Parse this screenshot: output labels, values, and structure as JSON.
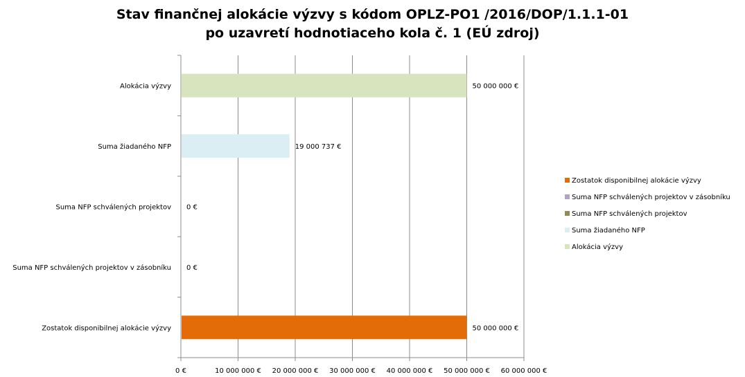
{
  "chart_data": {
    "type": "bar",
    "orientation": "horizontal",
    "title_line1": "Stav finančnej alokácie výzvy s kódom OPLZ-PO1  /2016/DOP/1.1.1-01",
    "title_line2": "po uzavretí hodnotiaceho kola č. 1 (EÚ zdroj)",
    "categories": [
      "Alokácia výzvy",
      "Suma žiadaného NFP",
      "Suma NFP schválených projektov",
      "Suma NFP schválených projektov v zásobníku",
      "Zostatok disponibilnej alokácie výzvy"
    ],
    "values": [
      50000000,
      19000737,
      0,
      0,
      50000000
    ],
    "value_labels": [
      "50 000 000 €",
      "19 000 737 €",
      "0 €",
      "0 €",
      "50 000 000 €"
    ],
    "colors": [
      "#d7e4bd",
      "#dbeef4",
      "#948a54",
      "#b3a2c7",
      "#e36c09"
    ],
    "xlim": [
      0,
      60000000
    ],
    "xticks": [
      0,
      10000000,
      20000000,
      30000000,
      40000000,
      50000000,
      60000000
    ],
    "xtick_labels": [
      "0 €",
      "10 000 000 €",
      "20 000 000 €",
      "30 000 000 €",
      "40 000 000 €",
      "50 000 000 €",
      "60 000 000 €"
    ],
    "grid": true,
    "legend_position": "right",
    "legend": [
      {
        "label": "Zostatok disponibilnej alokácie výzvy",
        "color": "#e36c09"
      },
      {
        "label": "Suma NFP schválených projektov v zásobníku",
        "color": "#b3a2c7"
      },
      {
        "label": "Suma NFP schválených projektov",
        "color": "#948a54"
      },
      {
        "label": "Suma žiadaného NFP",
        "color": "#dbeef4"
      },
      {
        "label": "Alokácia výzvy",
        "color": "#d7e4bd"
      }
    ]
  }
}
